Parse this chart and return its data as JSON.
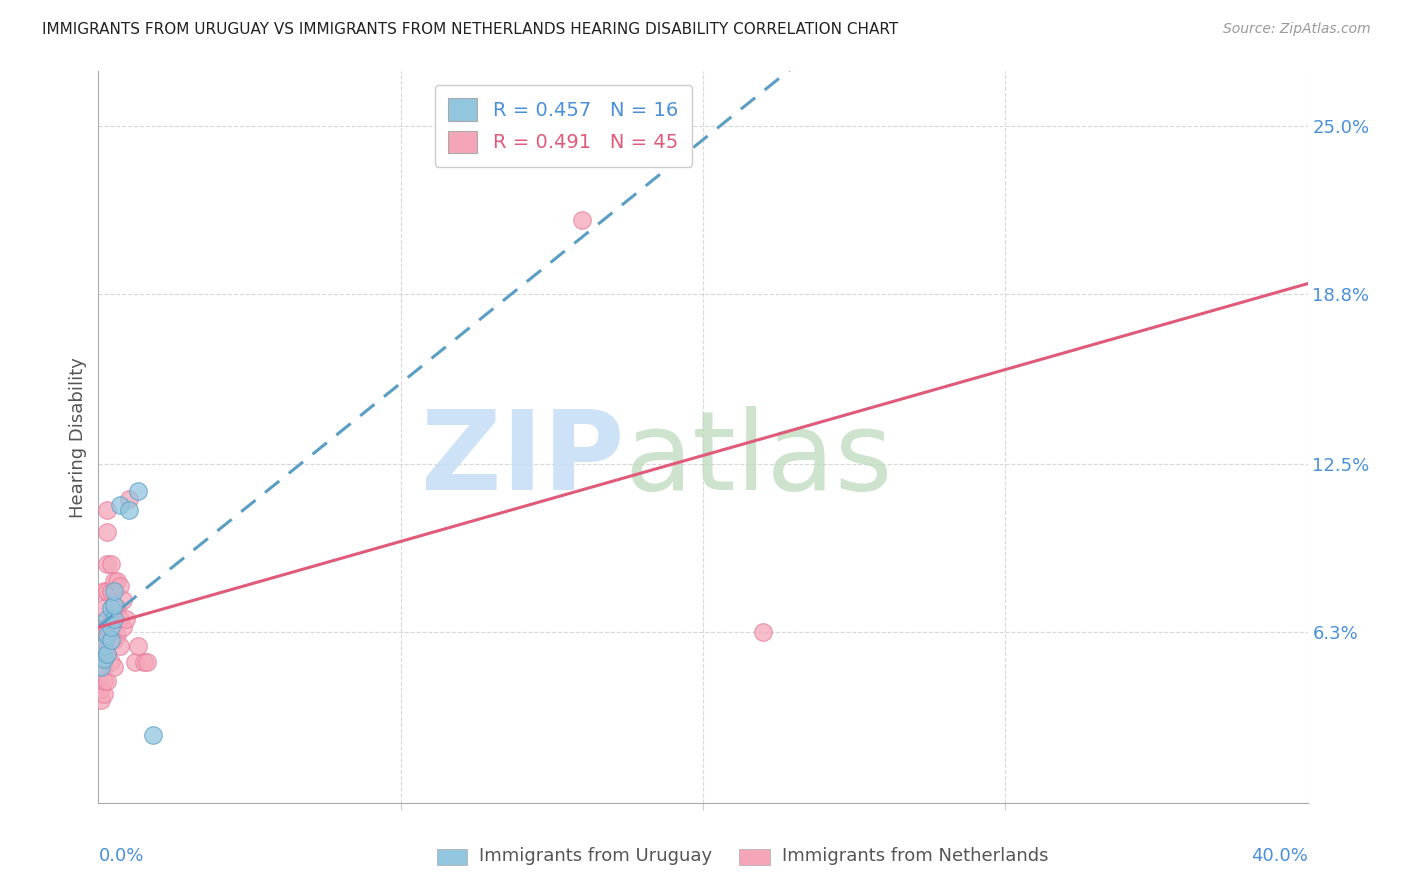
{
  "title": "IMMIGRANTS FROM URUGUAY VS IMMIGRANTS FROM NETHERLANDS HEARING DISABILITY CORRELATION CHART",
  "source": "Source: ZipAtlas.com",
  "ylabel": "Hearing Disability",
  "ytick_labels": [
    "6.3%",
    "12.5%",
    "18.8%",
    "25.0%"
  ],
  "ytick_values": [
    0.063,
    0.125,
    0.188,
    0.25
  ],
  "xlim": [
    0.0,
    0.4
  ],
  "ylim": [
    0.0,
    0.27
  ],
  "legend_blue_R": "R = 0.457",
  "legend_blue_N": "N = 16",
  "legend_pink_R": "R = 0.491",
  "legend_pink_N": "N = 45",
  "legend_label_blue": "Immigrants from Uruguay",
  "legend_label_pink": "Immigrants from Netherlands",
  "blue_color": "#92c5de",
  "pink_color": "#f4a6b8",
  "blue_scatter": [
    [
      0.001,
      0.05
    ],
    [
      0.002,
      0.053
    ],
    [
      0.002,
      0.058
    ],
    [
      0.003,
      0.055
    ],
    [
      0.003,
      0.062
    ],
    [
      0.003,
      0.068
    ],
    [
      0.004,
      0.06
    ],
    [
      0.004,
      0.065
    ],
    [
      0.004,
      0.072
    ],
    [
      0.005,
      0.068
    ],
    [
      0.005,
      0.073
    ],
    [
      0.005,
      0.078
    ],
    [
      0.007,
      0.11
    ],
    [
      0.01,
      0.108
    ],
    [
      0.013,
      0.115
    ],
    [
      0.018,
      0.025
    ]
  ],
  "pink_scatter": [
    [
      0.001,
      0.038
    ],
    [
      0.001,
      0.042
    ],
    [
      0.001,
      0.055
    ],
    [
      0.001,
      0.06
    ],
    [
      0.002,
      0.04
    ],
    [
      0.002,
      0.045
    ],
    [
      0.002,
      0.05
    ],
    [
      0.002,
      0.055
    ],
    [
      0.002,
      0.06
    ],
    [
      0.002,
      0.065
    ],
    [
      0.002,
      0.072
    ],
    [
      0.002,
      0.078
    ],
    [
      0.003,
      0.045
    ],
    [
      0.003,
      0.055
    ],
    [
      0.003,
      0.06
    ],
    [
      0.003,
      0.065
    ],
    [
      0.003,
      0.078
    ],
    [
      0.003,
      0.088
    ],
    [
      0.003,
      0.1
    ],
    [
      0.003,
      0.108
    ],
    [
      0.004,
      0.052
    ],
    [
      0.004,
      0.06
    ],
    [
      0.004,
      0.068
    ],
    [
      0.004,
      0.078
    ],
    [
      0.004,
      0.088
    ],
    [
      0.005,
      0.05
    ],
    [
      0.005,
      0.06
    ],
    [
      0.005,
      0.072
    ],
    [
      0.005,
      0.082
    ],
    [
      0.006,
      0.062
    ],
    [
      0.006,
      0.072
    ],
    [
      0.006,
      0.082
    ],
    [
      0.007,
      0.058
    ],
    [
      0.007,
      0.068
    ],
    [
      0.007,
      0.08
    ],
    [
      0.008,
      0.065
    ],
    [
      0.008,
      0.075
    ],
    [
      0.009,
      0.068
    ],
    [
      0.01,
      0.112
    ],
    [
      0.012,
      0.052
    ],
    [
      0.013,
      0.058
    ],
    [
      0.015,
      0.052
    ],
    [
      0.016,
      0.052
    ],
    [
      0.22,
      0.063
    ],
    [
      0.16,
      0.215
    ]
  ],
  "background_color": "#ffffff"
}
